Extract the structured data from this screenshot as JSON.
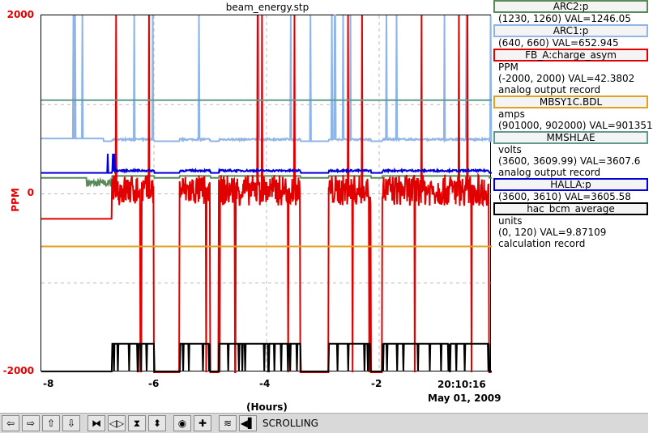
{
  "plot": {
    "title": "beam_energy.stp",
    "y_axis_label": "PPM",
    "y_ticks": [
      "2000",
      "0",
      "-2000"
    ],
    "x_ticks": [
      "-8",
      "-6",
      "-4",
      "-2"
    ],
    "x_label": "(Hours)",
    "time_label": "20:10:16",
    "date_label": "May 01, 2009"
  },
  "legend": [
    {
      "name": "ARC2:p",
      "color": "#5a8a5a",
      "lines": [
        "(1230, 1260) VAL=1246.05"
      ]
    },
    {
      "name": "ARC1:p",
      "color": "#8fb4e6",
      "lines": [
        "(640, 660) VAL=652.945"
      ]
    },
    {
      "name": "FB_A:charge_asym",
      "color": "#e00000",
      "lines": [
        "PPM",
        "(-2000, 2000) VAL=42.3802",
        "analog output record"
      ]
    },
    {
      "name": "MBSY1C.BDL",
      "color": "#e0a020",
      "lines": [
        "amps",
        "(901000, 902000) VAL=901351"
      ]
    },
    {
      "name": "MMSHLAE",
      "color": "#5f9a8f",
      "lines": [
        "volts",
        "(3600, 3609.99) VAL=3607.6",
        "analog output record"
      ]
    },
    {
      "name": "HALLA:p",
      "color": "#0000dd",
      "lines": [
        "(3600, 3610) VAL=3605.58"
      ]
    },
    {
      "name": "hac_bcm_average",
      "color": "#000000",
      "lines": [
        "units",
        "(0, 120) VAL=9.87109",
        "calculation record"
      ]
    }
  ],
  "toolbar": {
    "status": "SCROLLING",
    "buttons": [
      {
        "name": "scroll-left-button",
        "icon": "arrow-left-icon",
        "glyph": "⇦"
      },
      {
        "name": "scroll-right-button",
        "icon": "arrow-right-icon",
        "glyph": "⇨"
      },
      {
        "name": "scroll-up-button",
        "icon": "arrow-up-icon",
        "glyph": "⇧"
      },
      {
        "name": "scroll-down-button",
        "icon": "arrow-down-icon",
        "glyph": "⇩"
      },
      {
        "name": "zoom-in-x-button",
        "icon": "compress-x-icon",
        "glyph": "⧓"
      },
      {
        "name": "zoom-out-x-button",
        "icon": "expand-x-icon",
        "glyph": "◁▷"
      },
      {
        "name": "zoom-in-y-button",
        "icon": "compress-y-icon",
        "glyph": "⧗"
      },
      {
        "name": "zoom-out-y-button",
        "icon": "expand-y-icon",
        "glyph": "⬍"
      },
      {
        "name": "reset-button",
        "icon": "target-icon",
        "glyph": "◉"
      },
      {
        "name": "add-button",
        "icon": "plus-icon",
        "glyph": "✚"
      },
      {
        "name": "autoscale-button",
        "icon": "autoscale-icon",
        "glyph": "≋"
      },
      {
        "name": "play-back-button",
        "icon": "play-back-icon",
        "glyph": "◀▌"
      }
    ]
  },
  "chart_data": {
    "type": "line",
    "x_range_hours": [
      -8,
      0
    ],
    "y_range_ppm": [
      -2000,
      2000
    ],
    "series": [
      {
        "name": "ARC2:p",
        "color": "#5a8a5a",
        "level_ppm": 180
      },
      {
        "name": "ARC1:p",
        "color": "#8fb4e6",
        "level_ppm": 610
      },
      {
        "name": "FB_A:charge_asym",
        "color": "#e00000",
        "level_ppm": 0
      },
      {
        "name": "MBSY1C.BDL",
        "color": "#e0a020",
        "level_ppm": -590
      },
      {
        "name": "MMSHLAE",
        "color": "#5f9a8f",
        "level_ppm": 1050
      },
      {
        "name": "HALLA:p",
        "color": "#0000dd",
        "level_ppm": 260
      },
      {
        "name": "hac_bcm_average",
        "color": "#000000",
        "level_ppm": -1990
      }
    ]
  }
}
